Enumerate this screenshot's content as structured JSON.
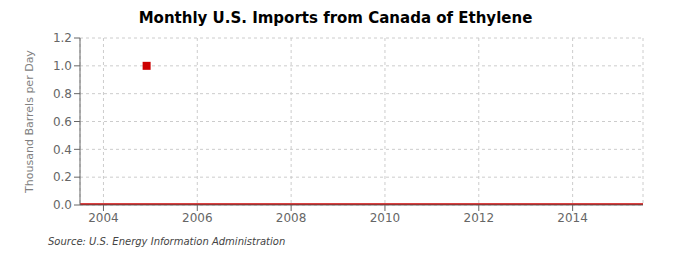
{
  "chart_data": {
    "type": "line",
    "title": "Monthly U.S. Imports from Canada of Ethylene",
    "ylabel": "Thousand Barrels per Day",
    "source": "Source: U.S. Energy Information Administration",
    "xlim": [
      2003.5,
      2015.5
    ],
    "xticks": [
      2004,
      2006,
      2008,
      2010,
      2012,
      2014
    ],
    "ylim": [
      0,
      1.2
    ],
    "yticks": [
      {
        "value": 0,
        "label": "0.0"
      },
      0.2,
      0.4,
      0.6,
      0.8,
      {
        "value": 1,
        "label": "1.0"
      },
      1.2
    ],
    "grid": true,
    "series": [
      {
        "x": [
          2003.5,
          2015.5
        ],
        "values": [
          0,
          0
        ],
        "color": "#cc0000"
      },
      {
        "x": [
          2003.5,
          2015.5
        ],
        "values": [
          0.003,
          0.003
        ],
        "color": "#cc0000"
      },
      {
        "type": "scatter",
        "x": [
          2004.92
        ],
        "values": [
          1.0
        ],
        "color": "#cc0000",
        "marker": "square"
      }
    ]
  }
}
